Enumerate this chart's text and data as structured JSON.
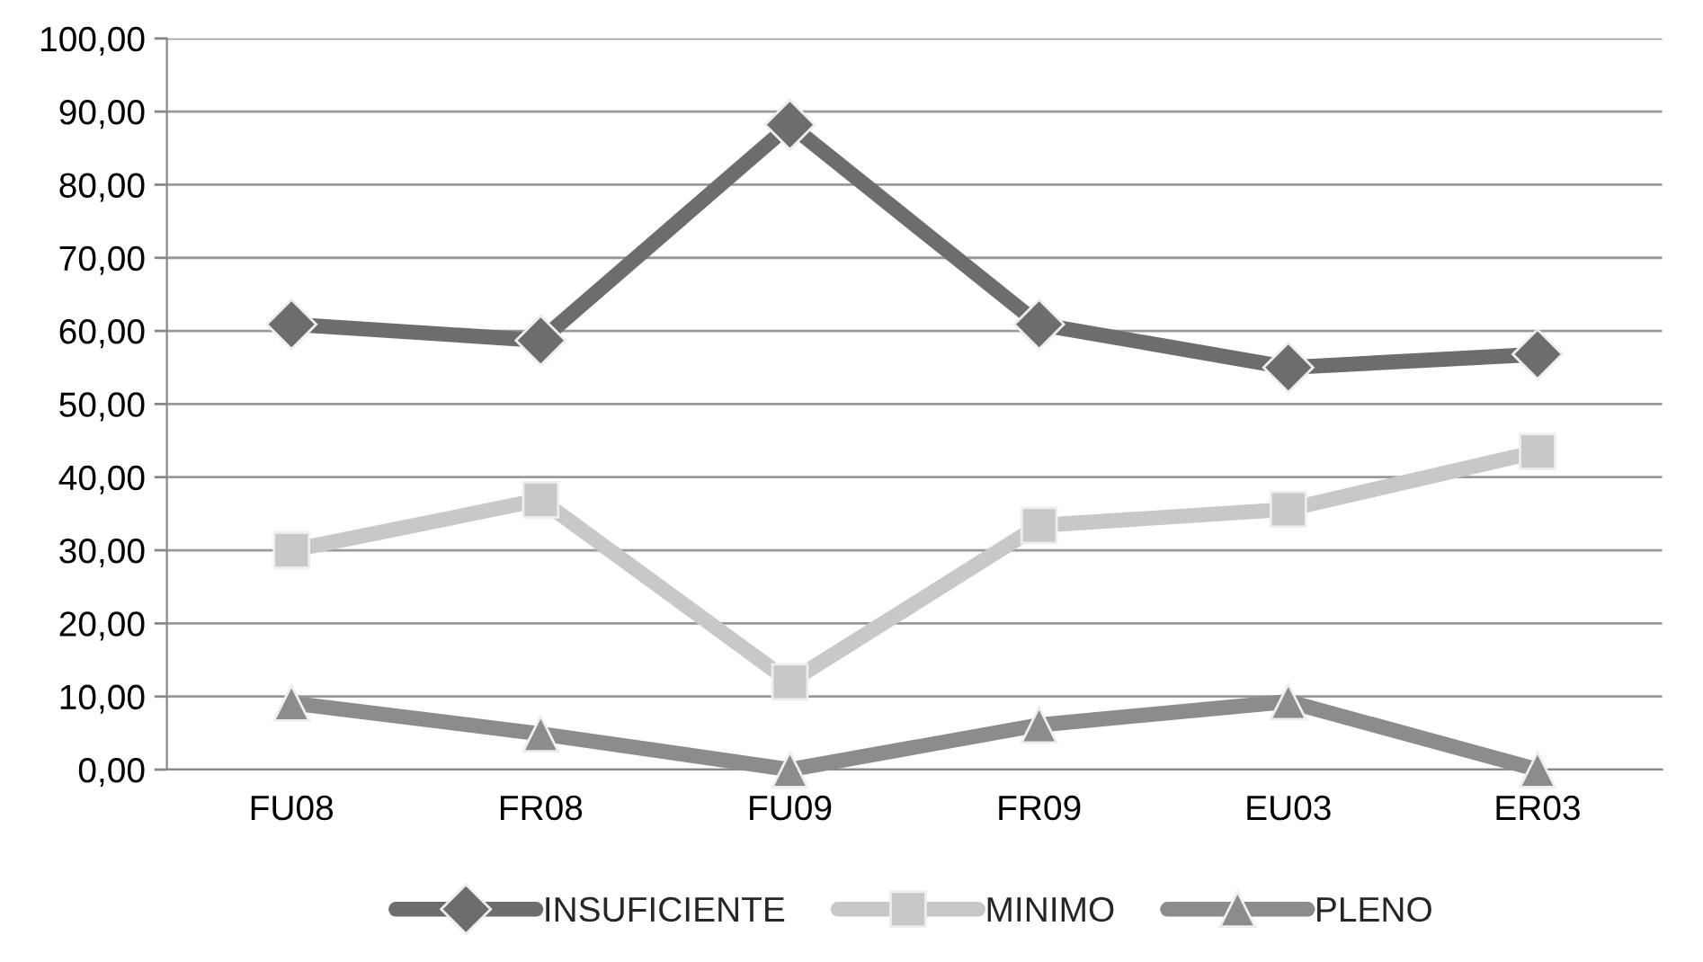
{
  "chart_data": {
    "type": "line",
    "categories": [
      "FU08",
      "FR08",
      "FU09",
      "FR09",
      "EU03",
      "ER03"
    ],
    "series": [
      {
        "name": "INSUFICIENTE",
        "color": "#6d6d6d",
        "marker": "diamond",
        "values": [
          60.9,
          58.7,
          88.2,
          60.9,
          55.0,
          56.8
        ]
      },
      {
        "name": "MINIMO",
        "color": "#c8c8c8",
        "marker": "square",
        "values": [
          30.0,
          36.9,
          12.0,
          33.4,
          35.6,
          43.5
        ]
      },
      {
        "name": "PLENO",
        "color": "#8c8c8c",
        "marker": "triangle",
        "values": [
          9.1,
          4.9,
          0.0,
          6.1,
          9.3,
          0.0
        ]
      }
    ],
    "ylim": [
      0,
      100
    ],
    "yticks": [
      {
        "value": 0,
        "label": "0,00"
      },
      {
        "value": 10,
        "label": "10,00"
      },
      {
        "value": 20,
        "label": "20,00"
      },
      {
        "value": 30,
        "label": "30,00"
      },
      {
        "value": 40,
        "label": "40,00"
      },
      {
        "value": 50,
        "label": "50,00"
      },
      {
        "value": 60,
        "label": "60,00"
      },
      {
        "value": 70,
        "label": "70,00"
      },
      {
        "value": 80,
        "label": "80,00"
      },
      {
        "value": 90,
        "label": "90,00"
      },
      {
        "value": 100,
        "label": "100,00"
      }
    ],
    "grid": "y",
    "legend": "bottom",
    "line_style": "solid"
  }
}
